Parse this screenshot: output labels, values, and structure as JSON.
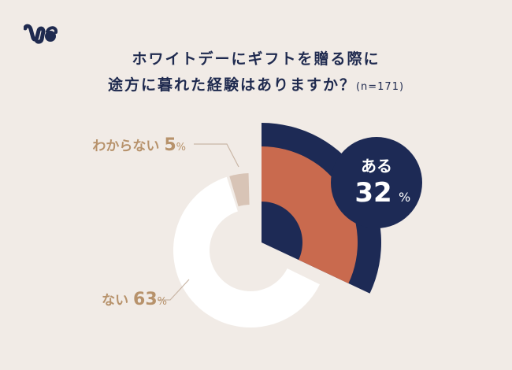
{
  "title": {
    "line1": "ホワイトデーにギフトを贈る際に",
    "line2": "途方に暮れた経験はありますか？",
    "sample": "(n=171)"
  },
  "logo": {
    "icon": "brand-logo-icon"
  },
  "chart_data": {
    "type": "pie",
    "donut": true,
    "slices": [
      {
        "label": "ある",
        "value": 32,
        "unit": "%",
        "color": "#c96a4e",
        "outer_color": "#1d2a55"
      },
      {
        "label": "ない",
        "value": 63,
        "unit": "%",
        "color": "#ffffff"
      },
      {
        "label": "わからない",
        "value": 5,
        "unit": "%",
        "color": "#d8c4b6"
      }
    ],
    "label_colors": {
      "muted": "#b7926b",
      "highlight_text": "#ffffff",
      "highlight_bg": "#1d2a55"
    }
  }
}
